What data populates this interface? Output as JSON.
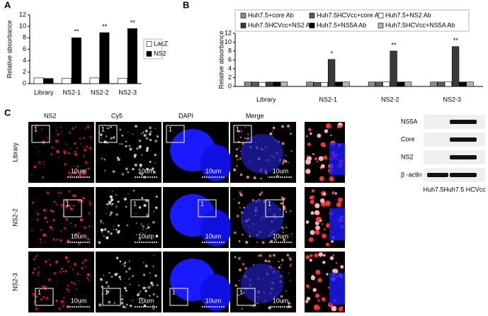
{
  "panel_labels": [
    "A",
    "B",
    "C"
  ],
  "chart_data": [
    {
      "type": "bar",
      "y_label": "Relative absorbance",
      "categories": [
        "Library",
        "NS2-1",
        "NS2-2",
        "NS2-3"
      ],
      "ylim": [
        0,
        12
      ],
      "yticks": [
        0,
        2,
        4,
        6,
        8,
        10,
        12
      ],
      "series": [
        {
          "name": "LacZ",
          "color": "#ffffff",
          "values": [
            1,
            0.9,
            1,
            0.9
          ],
          "significance": [
            null,
            null,
            null,
            null
          ]
        },
        {
          "name": "NS2",
          "color": "#000000",
          "values": [
            0.9,
            8,
            8.9,
            9.6
          ],
          "significance": [
            null,
            "**",
            "**",
            "**"
          ]
        }
      ]
    },
    {
      "type": "bar",
      "y_label": "Relative absorbance",
      "categories": [
        "Library",
        "NS2-1",
        "NS2-2",
        "NS2-3"
      ],
      "ylim": [
        0,
        12
      ],
      "yticks": [
        0,
        2,
        4,
        6,
        8,
        10,
        12
      ],
      "series": [
        {
          "name": "Huh7.5+core Ab",
          "color": "#8c8c8c",
          "values": [
            1,
            1,
            1,
            1
          ],
          "significance": [
            null,
            null,
            null,
            null
          ]
        },
        {
          "name": "Huh7.5HCVcc+core Ab",
          "color": "#5a5a5a",
          "values": [
            1,
            0.9,
            1,
            1
          ],
          "significance": [
            null,
            null,
            null,
            null
          ]
        },
        {
          "name": "Huh7.5+NS2 Ab",
          "color": "#ffffff",
          "values": [
            0.9,
            0.9,
            1,
            1
          ],
          "significance": [
            null,
            null,
            null,
            null
          ]
        },
        {
          "name": "Huh7.5HCVcc+NS2 Ab",
          "color": "#3a3a3a",
          "values": [
            1,
            6.1,
            8,
            9
          ],
          "significance": [
            null,
            "*",
            "**",
            "**"
          ]
        },
        {
          "name": "Huh7.5+NS5A Ab",
          "color": "#000000",
          "values": [
            1,
            1,
            1,
            1
          ],
          "significance": [
            null,
            null,
            null,
            null
          ]
        },
        {
          "name": "Huh7.5HCVcc+NS5A Ab",
          "color": "#b4b4b4",
          "values": [
            1,
            1,
            1,
            1
          ],
          "significance": [
            null,
            null,
            null,
            null
          ]
        }
      ]
    }
  ],
  "microscopy": {
    "columns": [
      "NS2",
      "Cy5",
      "DAPI",
      "Merge"
    ],
    "rows": [
      "Library",
      "NS2-2",
      "NS2-3"
    ],
    "scale_bar": "10um",
    "inset": "1"
  },
  "western_blot": {
    "proteins": [
      "NS5A",
      "Core",
      "NS2",
      "β -actin"
    ],
    "lanes": [
      "Huh7.5",
      "Huh7.5 HCVcc"
    ]
  }
}
